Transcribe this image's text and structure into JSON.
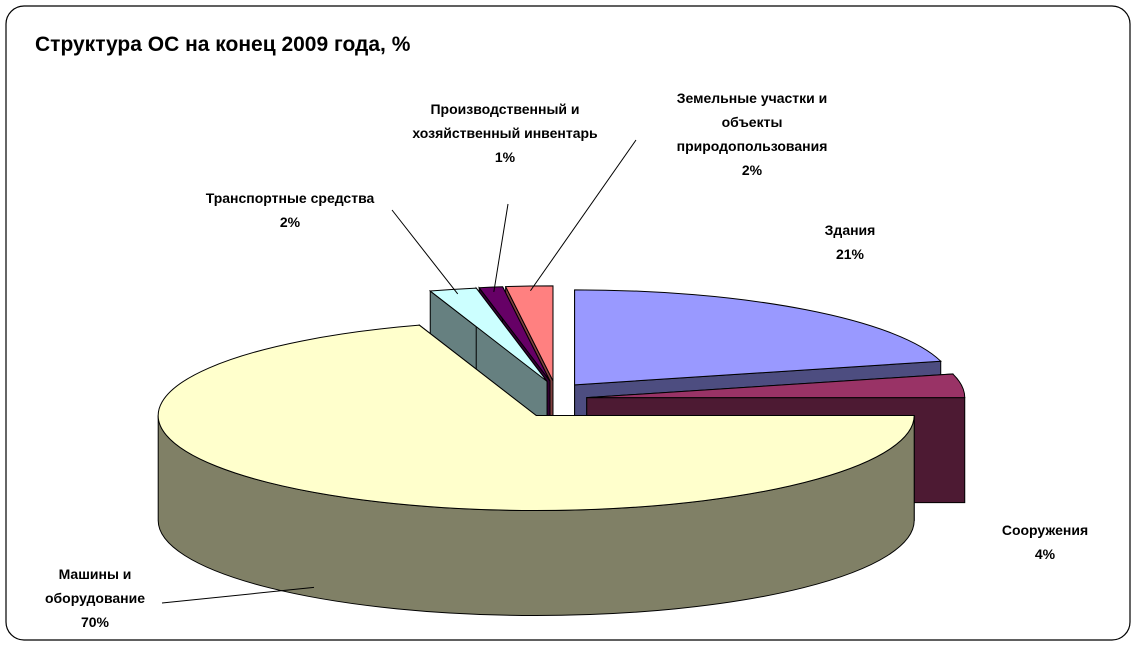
{
  "chart_data": {
    "type": "pie",
    "title": "Структура ОС на конец 2009 года, %",
    "categories": [
      "Здания",
      "Сооружения",
      "Машины и оборудование",
      "Транспортные средства",
      "Производственный и хозяйственный инвентарь",
      "Земельные участки и объекты природопользования"
    ],
    "values": [
      21,
      4,
      70,
      2,
      1,
      2
    ],
    "value_labels": [
      "21%",
      "4%",
      "70%",
      "2%",
      "1%",
      "2%"
    ],
    "colors": [
      "#9999ff",
      "#993366",
      "#ffffcc",
      "#ccffff",
      "#660066",
      "#ff8080"
    ]
  }
}
